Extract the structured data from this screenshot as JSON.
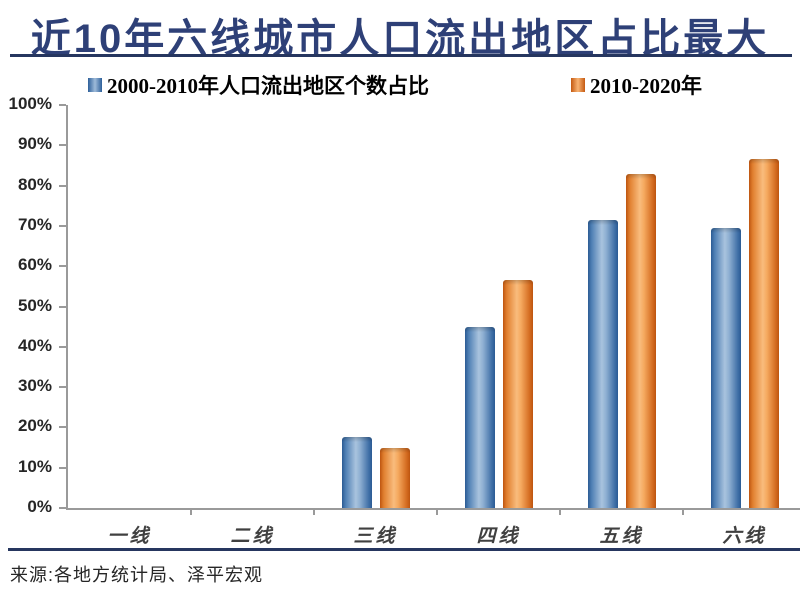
{
  "title": "近10年六线城市人口流出地区占比最大",
  "source": "来源:各地方统计局、泽平宏观",
  "colors": {
    "title_navy": "#2E4077",
    "divider_navy": "#26365F",
    "blue_bar_edge": "#2B5B94",
    "blue_bar_center": "#A9C3DE",
    "orange_bar_edge": "#C55A11",
    "orange_bar_center": "#F9BC7D",
    "axis_gray": "#9A9A9A",
    "text_dark": "#262626"
  },
  "chart_data": {
    "type": "bar",
    "title": "近10年六线城市人口流出地区占比最大",
    "categories": [
      "一线",
      "二线",
      "三线",
      "四线",
      "五线",
      "六线"
    ],
    "series": [
      {
        "name": "2000-2010年人口流出地区个数占比",
        "color": "#2B5B94",
        "values": [
          0,
          0,
          17.5,
          45,
          71.5,
          69.5
        ]
      },
      {
        "name": "2010-2020年",
        "color": "#D2691E",
        "values": [
          0,
          0,
          15,
          56.5,
          83,
          86.5
        ]
      }
    ],
    "xlabel": "",
    "ylabel": "",
    "ylim": [
      0,
      100
    ],
    "y_ticks": [
      "100%",
      "90%",
      "80%",
      "70%",
      "60%",
      "50%",
      "40%",
      "30%",
      "20%",
      "10%",
      "0%"
    ],
    "grid": false,
    "legend_position": "top"
  }
}
